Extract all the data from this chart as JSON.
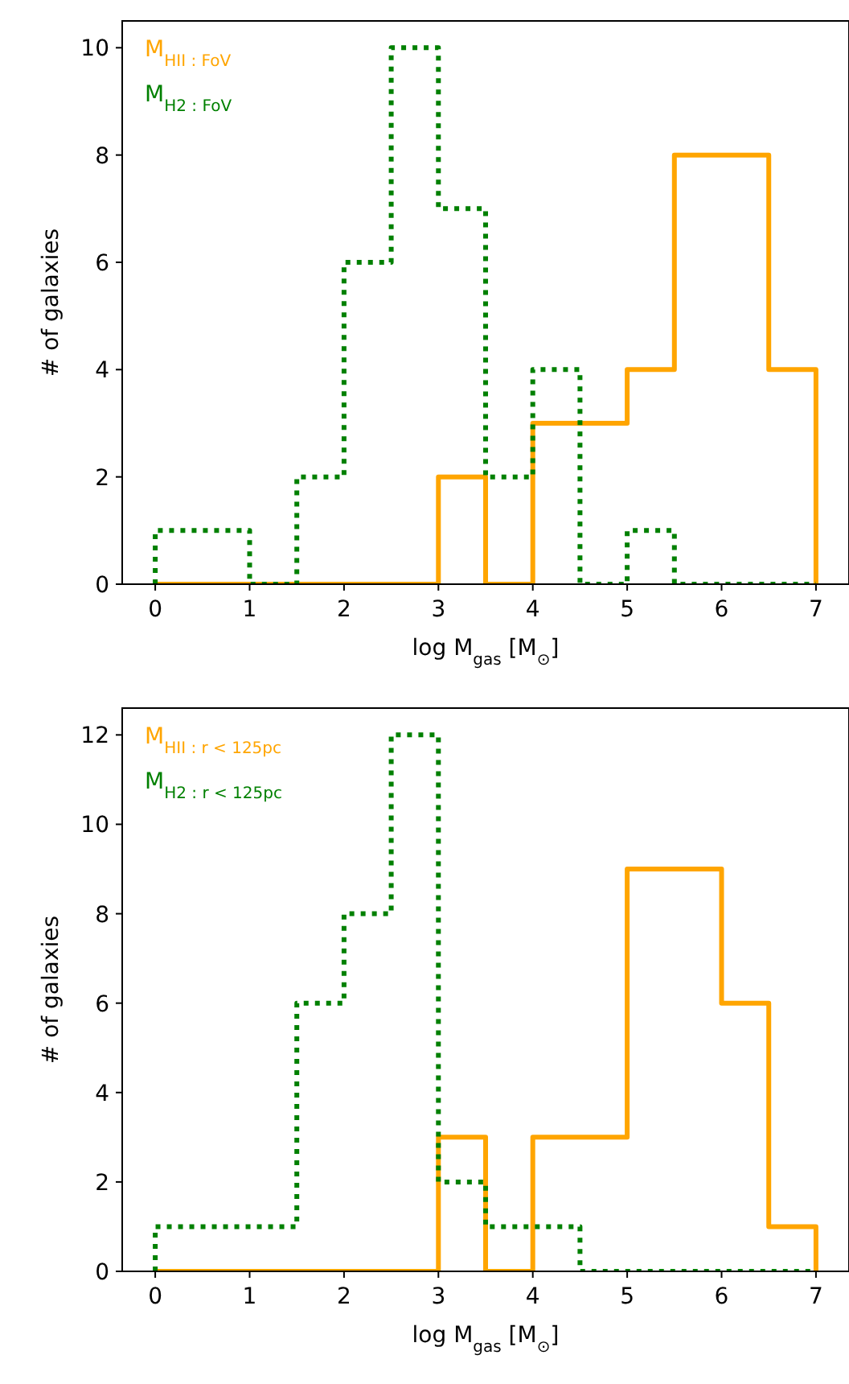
{
  "chart_data": [
    {
      "type": "histogram",
      "xlabel": "log M$_{gas}$ [M$_{⊙}$]",
      "ylabel": "# of galaxies",
      "bins": [
        0,
        0.5,
        1,
        1.5,
        2,
        2.5,
        3,
        3.5,
        4,
        4.5,
        5,
        5.5,
        6,
        6.5,
        7
      ],
      "xlim": [
        -0.35,
        7.35
      ],
      "xticks": [
        0,
        1,
        2,
        3,
        4,
        5,
        6,
        7
      ],
      "ylim": [
        0,
        10.5
      ],
      "yticks": [
        0,
        2,
        4,
        6,
        8,
        10
      ],
      "legend": "top left",
      "grid": false,
      "series": [
        {
          "name": "M$_{HII : FoV}$",
          "color": "#ffa500",
          "line_style": "solid",
          "values": [
            0,
            0,
            0,
            0,
            0,
            0,
            2,
            0,
            3,
            3,
            4,
            8,
            8,
            4
          ]
        },
        {
          "name": "M$_{H2 : FoV}$",
          "color": "#008000",
          "line_style": "dotted",
          "values": [
            1,
            1,
            0,
            2,
            6,
            10,
            7,
            2,
            4,
            0,
            1,
            0,
            0,
            0
          ]
        }
      ]
    },
    {
      "type": "histogram",
      "xlabel": "log M$_{gas}$ [M$_{⊙}$]",
      "ylabel": "# of galaxies",
      "bins": [
        0,
        0.5,
        1,
        1.5,
        2,
        2.5,
        3,
        3.5,
        4,
        4.5,
        5,
        5.5,
        6,
        6.5,
        7
      ],
      "xlim": [
        -0.35,
        7.35
      ],
      "xticks": [
        0,
        1,
        2,
        3,
        4,
        5,
        6,
        7
      ],
      "ylim": [
        0,
        12.6
      ],
      "yticks": [
        0,
        2,
        4,
        6,
        8,
        10,
        12
      ],
      "legend": "top left",
      "grid": false,
      "series": [
        {
          "name": "M$_{HII : r < 125pc}$",
          "color": "#ffa500",
          "line_style": "solid",
          "values": [
            0,
            0,
            0,
            0,
            0,
            0,
            3,
            0,
            3,
            3,
            9,
            9,
            6,
            1
          ]
        },
        {
          "name": "M$_{H2 : r < 125pc}$",
          "color": "#008000",
          "line_style": "dotted",
          "values": [
            1,
            1,
            1,
            6,
            8,
            12,
            2,
            1,
            1,
            0,
            0,
            0,
            0,
            0
          ]
        }
      ]
    }
  ]
}
